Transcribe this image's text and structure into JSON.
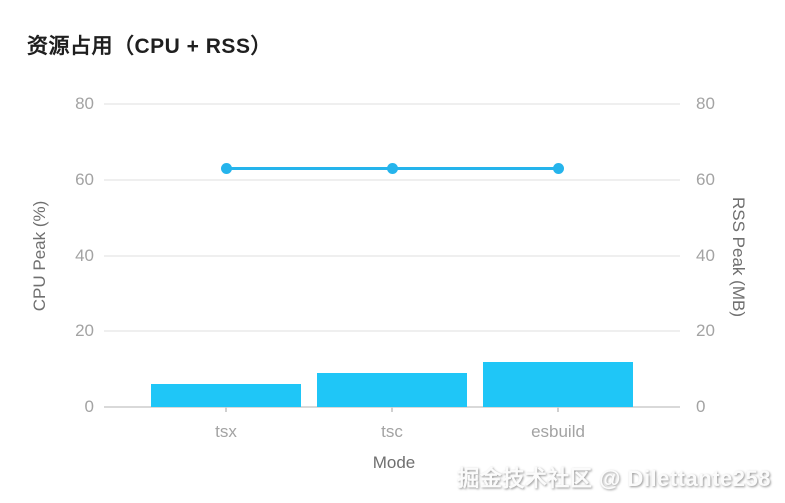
{
  "title": "资源占用（CPU + RSS）",
  "watermark": "掘金技术社区 @ Dilettante258",
  "colors": {
    "bar": "#1fc6f7",
    "line": "#25b4ec",
    "grid": "#efefef",
    "axis_line": "#d9d9d9",
    "tick_label": "#a3a3a3",
    "axis_title": "#6f6f6f",
    "title_text": "#1f1f1f"
  },
  "chart_data": {
    "type": "bar",
    "subtype": "bar-line-combo",
    "title": "资源占用（CPU + RSS）",
    "categories": [
      "tsx",
      "tsc",
      "esbuild"
    ],
    "series": [
      {
        "name": "CPU Peak (%)",
        "type": "bar",
        "axis": "left",
        "values": [
          6,
          9,
          12
        ]
      },
      {
        "name": "RSS Peak (MB)",
        "type": "line",
        "axis": "right",
        "values": [
          63,
          63,
          63
        ]
      }
    ],
    "xlabel": "Mode",
    "ylabel_left": "CPU Peak (%)",
    "ylabel_right": "RSS Peak (MB)",
    "ylim_left": [
      0,
      80
    ],
    "ylim_right": [
      0,
      80
    ],
    "yticks": [
      0,
      20,
      40,
      60,
      80
    ],
    "grid": true,
    "legend": false
  }
}
